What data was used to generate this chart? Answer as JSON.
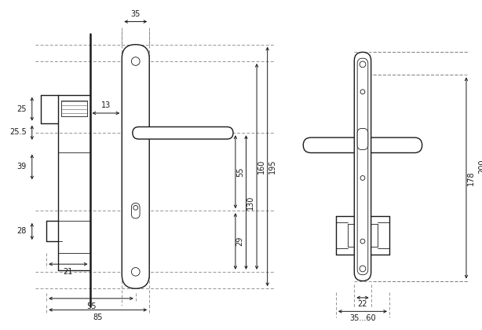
{
  "bg_color": "#ffffff",
  "line_color": "#1a1a1a",
  "dim_color": "#1a1a1a",
  "line_width": 1.0,
  "thin_line": 0.6,
  "thick_line": 1.8,
  "font_size": 7.0
}
